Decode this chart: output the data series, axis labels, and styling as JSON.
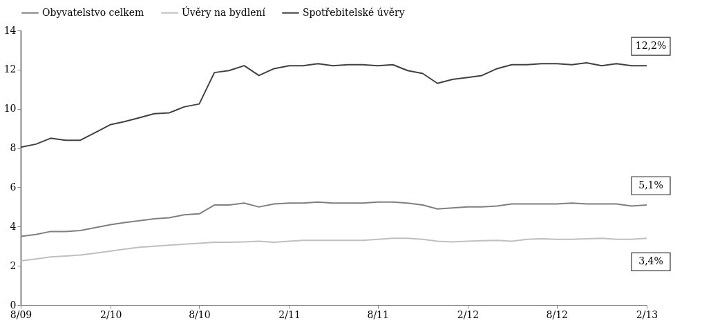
{
  "chart_data": {
    "type": "line",
    "x": [
      "2009-08",
      "2009-09",
      "2009-10",
      "2009-11",
      "2009-12",
      "2010-01",
      "2010-02",
      "2010-03",
      "2010-04",
      "2010-05",
      "2010-06",
      "2010-07",
      "2010-08",
      "2010-09",
      "2010-10",
      "2010-11",
      "2010-12",
      "2011-01",
      "2011-02",
      "2011-03",
      "2011-04",
      "2011-05",
      "2011-06",
      "2011-07",
      "2011-08",
      "2011-09",
      "2011-10",
      "2011-11",
      "2011-12",
      "2012-01",
      "2012-02",
      "2012-03",
      "2012-04",
      "2012-05",
      "2012-06",
      "2012-07",
      "2012-08",
      "2012-09",
      "2012-10",
      "2012-11",
      "2012-12",
      "2013-01",
      "2013-02"
    ],
    "series": [
      {
        "name": "Obyvatelstvo celkem",
        "color": "#7f7f7f",
        "values": [
          3.5,
          3.6,
          3.75,
          3.75,
          3.8,
          3.95,
          4.1,
          4.2,
          4.3,
          4.4,
          4.45,
          4.6,
          4.65,
          5.1,
          5.1,
          5.2,
          5.0,
          5.15,
          5.2,
          5.2,
          5.25,
          5.2,
          5.2,
          5.2,
          5.25,
          5.25,
          5.2,
          5.1,
          4.9,
          4.95,
          5.0,
          5.0,
          5.05,
          5.15,
          5.15,
          5.15,
          5.15,
          5.2,
          5.15,
          5.15,
          5.15,
          5.05,
          5.1
        ]
      },
      {
        "name": "Úvěry na bydlení",
        "color": "#bfbfbf",
        "values": [
          2.25,
          2.35,
          2.45,
          2.5,
          2.55,
          2.65,
          2.75,
          2.85,
          2.95,
          3.0,
          3.05,
          3.1,
          3.15,
          3.2,
          3.2,
          3.22,
          3.25,
          3.2,
          3.25,
          3.3,
          3.3,
          3.3,
          3.3,
          3.3,
          3.35,
          3.4,
          3.4,
          3.35,
          3.25,
          3.22,
          3.25,
          3.28,
          3.3,
          3.25,
          3.35,
          3.38,
          3.35,
          3.35,
          3.38,
          3.4,
          3.35,
          3.35,
          3.4
        ]
      },
      {
        "name": "Spotřebitelské úvěry",
        "color": "#404040",
        "values": [
          8.05,
          8.2,
          8.5,
          8.4,
          8.4,
          8.8,
          9.2,
          9.35,
          9.55,
          9.75,
          9.8,
          10.1,
          10.25,
          11.85,
          11.95,
          12.2,
          11.7,
          12.05,
          12.2,
          12.2,
          12.3,
          12.2,
          12.25,
          12.25,
          12.2,
          12.25,
          11.95,
          11.8,
          11.3,
          11.5,
          11.6,
          11.7,
          12.05,
          12.25,
          12.25,
          12.3,
          12.3,
          12.25,
          12.35,
          12.2,
          12.3,
          12.2,
          12.2
        ]
      }
    ],
    "ylim": [
      0,
      14
    ],
    "yticks": [
      0,
      2,
      4,
      6,
      8,
      10,
      12,
      14
    ],
    "xlim": [
      "2009-08",
      "2013-02"
    ],
    "xticks": [
      {
        "value": "2009-08",
        "label": "8/09"
      },
      {
        "value": "2010-02",
        "label": "2/10"
      },
      {
        "value": "2010-08",
        "label": "8/10"
      },
      {
        "value": "2011-02",
        "label": "2/11"
      },
      {
        "value": "2011-08",
        "label": "8/11"
      },
      {
        "value": "2012-02",
        "label": "2/12"
      },
      {
        "value": "2012-08",
        "label": "8/12"
      },
      {
        "value": "2013-02",
        "label": "2/13"
      }
    ],
    "annotations": [
      {
        "text": "12,2%",
        "x": "2013-02",
        "y": 12.2
      },
      {
        "text": "5,1%",
        "x": "2013-02",
        "y": 5.1
      },
      {
        "text": "3,4%",
        "x": "2013-02",
        "y": 3.4
      }
    ],
    "legend": "top",
    "grid": false,
    "marker": "none",
    "line_style": "solid"
  }
}
